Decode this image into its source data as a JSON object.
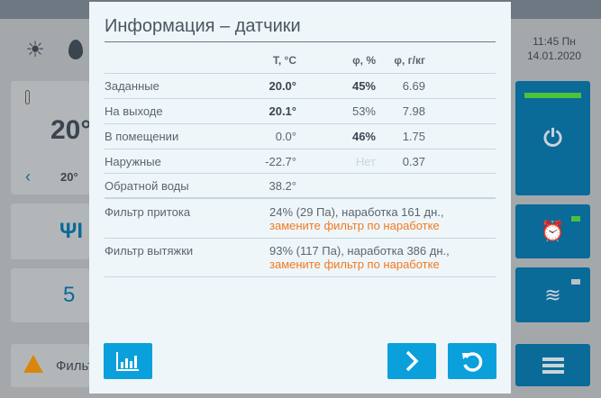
{
  "header": {
    "time": "11:45 Пн",
    "date": "14.01.2020"
  },
  "background": {
    "temperature_big": "20°",
    "temperature_small": "20°",
    "fan_speed": "5",
    "alert_text": "Фильтр"
  },
  "modal": {
    "title": "Информация – датчики",
    "columns": [
      "",
      "T, °C",
      "φ, %",
      "φ, г/кг"
    ],
    "rows": [
      {
        "label": "Заданные",
        "t": "20.0°",
        "rh": "45%",
        "abs": "6.69",
        "t_bold": true,
        "rh_bold": true
      },
      {
        "label": "На выходе",
        "t": "20.1°",
        "rh": "53%",
        "abs": "7.98",
        "t_bold": true,
        "rh_bold": false
      },
      {
        "label": "В помещении",
        "t": "0.0°",
        "rh": "46%",
        "abs": "1.75",
        "t_bold": false,
        "rh_bold": true
      },
      {
        "label": "Наружные",
        "t": "-22.7°",
        "rh": "Нет",
        "abs": "0.37",
        "t_bold": false,
        "rh_bold": false
      },
      {
        "label": "Обратной воды",
        "t": "38.2°",
        "rh": "",
        "abs": ""
      }
    ],
    "filters": [
      {
        "label": "Фильтр притока",
        "status": "24% (29 Па), наработка 161 дн.,",
        "warning": "замените фильтр по наработке"
      },
      {
        "label": "Фильтр вытяжки",
        "status": "93% (117 Па), наработка 386 дн.,",
        "warning": "замените фильтр по наработке"
      }
    ]
  },
  "colors": {
    "accent": "#0aa0dc",
    "warning": "#f07a22",
    "power_on": "#4cc13a"
  }
}
